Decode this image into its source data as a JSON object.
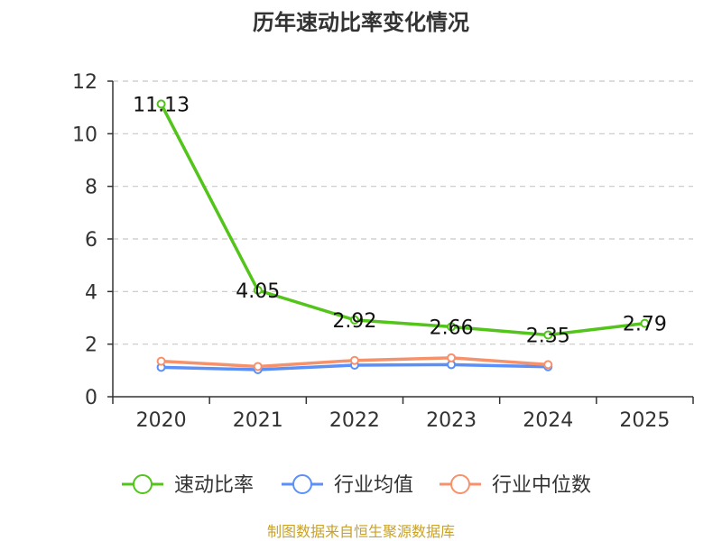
{
  "chart_data": {
    "type": "line",
    "title": "历年速动比率变化情况",
    "categories": [
      "2020",
      "2021",
      "2022",
      "2023",
      "2024",
      "2025"
    ],
    "ylim": [
      0,
      12
    ],
    "yticks": [
      0,
      2,
      4,
      6,
      8,
      10,
      12
    ],
    "grid": true,
    "legend_position": "bottom",
    "series": [
      {
        "name": "速动比率",
        "color": "#52c41a",
        "values": [
          11.13,
          4.05,
          2.92,
          2.66,
          2.35,
          2.79
        ],
        "labels": [
          "11.13",
          "4.05",
          "2.92",
          "2.66",
          "2.35",
          "2.79"
        ]
      },
      {
        "name": "行业均值",
        "color": "#5b8ff9",
        "values": [
          1.12,
          1.03,
          1.2,
          1.22,
          1.14,
          null
        ]
      },
      {
        "name": "行业中位数",
        "color": "#f6926b",
        "values": [
          1.35,
          1.15,
          1.38,
          1.48,
          1.22,
          null
        ]
      }
    ],
    "source": "制图数据来自恒生聚源数据库",
    "source_color": "#c9a227"
  }
}
